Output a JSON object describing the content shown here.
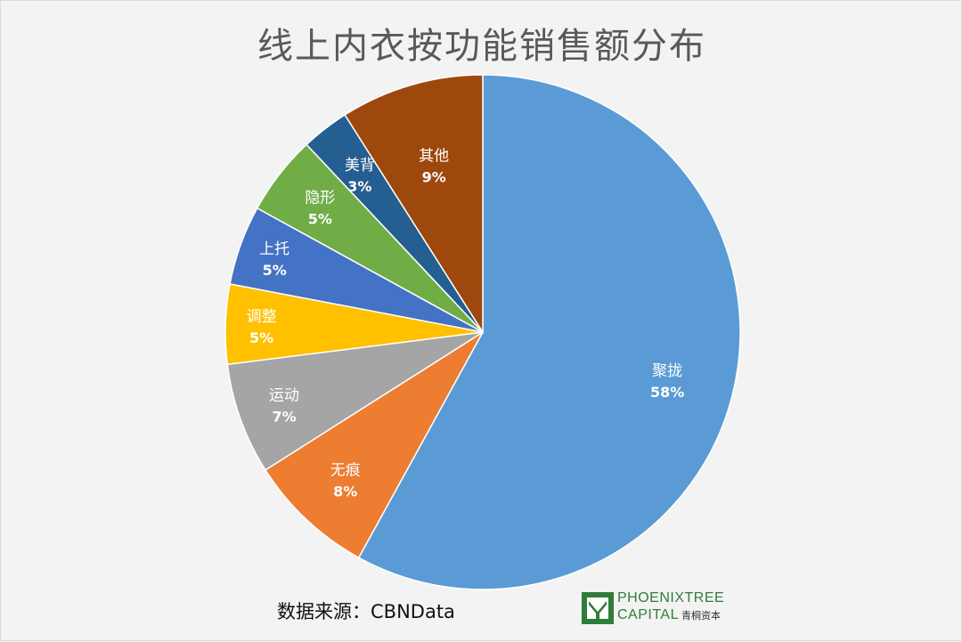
{
  "chart_data": {
    "type": "pie",
    "title": "线上内衣按功能销售额分布",
    "slices": [
      {
        "label": "聚拢",
        "value": 58,
        "display": "58%",
        "color": "#5b9bd5"
      },
      {
        "label": "无痕",
        "value": 8,
        "display": "8%",
        "color": "#ed7d31"
      },
      {
        "label": "运动",
        "value": 7,
        "display": "7%",
        "color": "#a5a5a5"
      },
      {
        "label": "调整",
        "value": 5,
        "display": "5%",
        "color": "#ffc000"
      },
      {
        "label": "上托",
        "value": 5,
        "display": "5%",
        "color": "#4472c4"
      },
      {
        "label": "隐形",
        "value": 5,
        "display": "5%",
        "color": "#70ad47"
      },
      {
        "label": "美背",
        "value": 3,
        "display": "3%",
        "color": "#255e91"
      },
      {
        "label": "其他",
        "value": 9,
        "display": "9%",
        "color": "#9e480e"
      }
    ],
    "start_angle_deg": 0,
    "direction": "clockwise",
    "legend": "none"
  },
  "footer": {
    "source": "数据来源：CBNData",
    "logo_line1": "PHOENIXTREE",
    "logo_line2": "CAPITAL",
    "logo_cn": "青桐资本"
  },
  "colors": {
    "background": "#f3f3f3",
    "title": "#595959",
    "logo_green": "#2f7d3a"
  }
}
